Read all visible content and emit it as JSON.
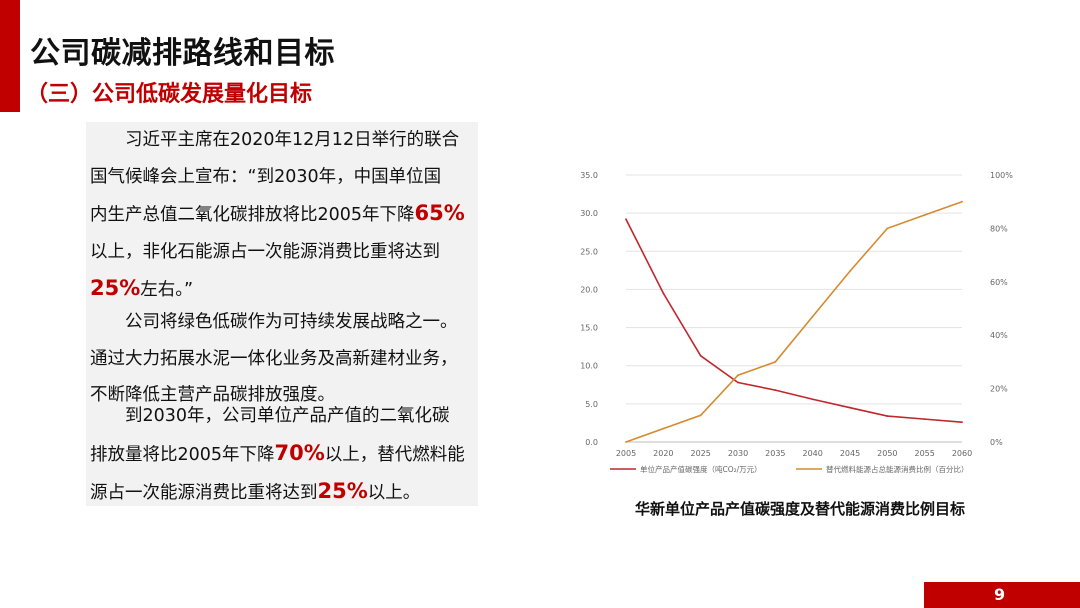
{
  "slide": {
    "title": "公司碳减排路线和目标",
    "subtitle": "（三）公司低碳发展量化目标",
    "page_number": "9"
  },
  "text_block": {
    "p1": [
      "习近平主席在2020年12月12日举行的联合",
      "国气候峰会上宣布：“到2030年，中国单位国",
      "内生产总值二氧化碳排放将比2005年下降",
      "65%",
      "以上，非化石能源占一次能源消费比重将达到",
      "25%",
      "左右。”"
    ],
    "p2": [
      "公司将绿色低碳作为可持续发展战略之一。",
      "通过大力拓展水泥一体化业务及高新建材业务，",
      "不断降低主营产品碳排放强度。"
    ],
    "p3": [
      "到2030年，公司单位产品产值的二氧化碳",
      "排放量将比2005年下降",
      "70%",
      "以上，替代燃料能",
      "源占一次能源消费比重将达到",
      "25%",
      "以上。"
    ]
  },
  "chart_caption": "华新单位产品产值碳强度及替代能源消费比例目标",
  "colors": {
    "accent": "#c00000",
    "series_intensity": "#c0272d",
    "series_alt_fuel": "#d58a2e"
  },
  "chart_data": {
    "type": "line",
    "x": [
      2005,
      2020,
      2025,
      2030,
      2035,
      2040,
      2045,
      2050,
      2055,
      2060
    ],
    "x_tick_labels": [
      "2005",
      "2020",
      "2025",
      "2030",
      "2035",
      "2040",
      "2045",
      "2050",
      "2055",
      "2060"
    ],
    "y_left_ticks": [
      "0.0",
      "5.0",
      "10.0",
      "15.0",
      "20.0",
      "25.0",
      "30.0",
      "35.0"
    ],
    "y_left_lim": [
      0,
      35
    ],
    "y_right_ticks": [
      "0%",
      "20%",
      "40%",
      "60%",
      "80%",
      "100%"
    ],
    "y_right_lim": [
      0,
      100
    ],
    "grid": "horizontal",
    "legend_position": "bottom",
    "series": [
      {
        "name": "单位产品产值碳强度（吨CO₂/万元）",
        "axis": "left",
        "values": [
          29.2,
          19.5,
          11.3,
          7.8,
          6.8,
          5.6,
          4.5,
          3.4,
          3.0,
          2.6
        ]
      },
      {
        "name": "替代燃料能源占总能源消费比例（百分比）",
        "axis": "right",
        "values": [
          0,
          5,
          10,
          25,
          30,
          47,
          64,
          80,
          85,
          90
        ]
      }
    ]
  }
}
